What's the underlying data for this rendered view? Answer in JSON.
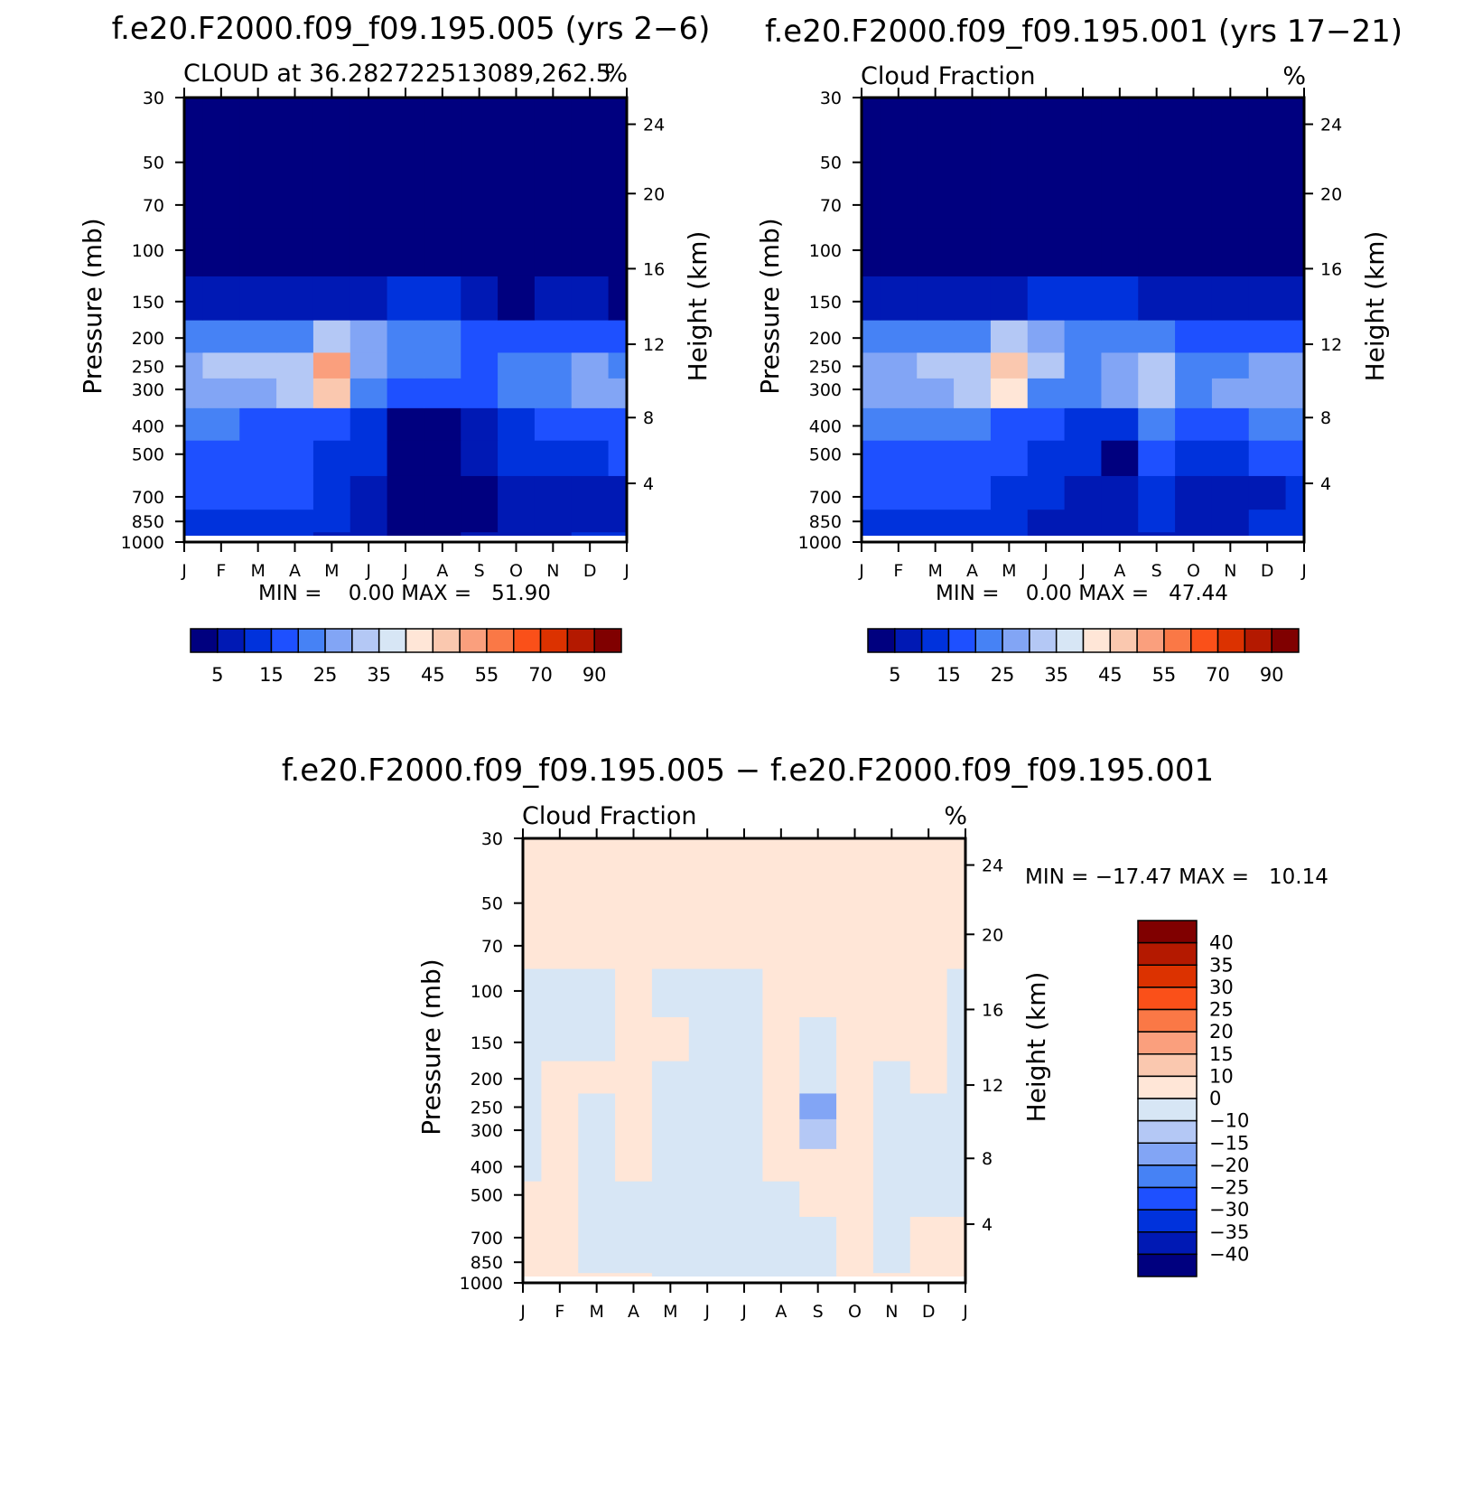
{
  "panels": [
    {
      "main_title": "f.e20.F2000.f09_f09.195.005 (yrs 2−6)",
      "subtitle_left": "CLOUD at 36.282722513089,262.5",
      "subtitle_right": "%",
      "minmax": "MIN =    0.00 MAX =   51.90"
    },
    {
      "main_title": "f.e20.F2000.f09_f09.195.001 (yrs 17−21)",
      "subtitle_left": "Cloud Fraction",
      "subtitle_right": "%",
      "minmax": "MIN =    0.00 MAX =   47.44"
    },
    {
      "main_title": "f.e20.F2000.f09_f09.195.005 − f.e20.F2000.f09_f09.195.001",
      "subtitle_left": "Cloud Fraction",
      "subtitle_right": "%",
      "minmax": "MIN = −17.47 MAX =   10.14"
    }
  ],
  "axes": {
    "left_label": "Pressure (mb)",
    "right_label": "Height (km)",
    "pressure_ticks": [
      "30",
      "50",
      "70",
      "100",
      "150",
      "200",
      "250",
      "300",
      "400",
      "500",
      "700",
      "850",
      "1000"
    ],
    "height_ticks": [
      "24",
      "20",
      "16",
      "12",
      "8",
      "4"
    ],
    "month_ticks": [
      "J",
      "F",
      "M",
      "A",
      "M",
      "J",
      "J",
      "A",
      "S",
      "O",
      "N",
      "D",
      "J"
    ]
  },
  "colorbar_abs": {
    "colors": [
      "#00007f",
      "#0019b4",
      "#0032dc",
      "#1e50ff",
      "#4682f5",
      "#82a5f5",
      "#b4c8f5",
      "#d7e6f5",
      "#ffe6d7",
      "#fac8af",
      "#fa9f7d",
      "#fa7846",
      "#fa5019",
      "#dc3200",
      "#b41900",
      "#800000"
    ],
    "labels": [
      "5",
      "15",
      "25",
      "35",
      "45",
      "55",
      "70",
      "90"
    ]
  },
  "colorbar_diff": {
    "colors": [
      "#00007f",
      "#0019b4",
      "#0032dc",
      "#1e50ff",
      "#4682f5",
      "#82a5f5",
      "#b4c8f5",
      "#d7e6f5",
      "#ffe6d7",
      "#fac8af",
      "#fa9f7d",
      "#fa7846",
      "#fa5019",
      "#dc3200",
      "#b41900",
      "#800000"
    ],
    "labels": [
      "40",
      "35",
      "30",
      "25",
      "20",
      "15",
      "10",
      "0",
      "−10",
      "−15",
      "−20",
      "−25",
      "−30",
      "−35",
      "−40"
    ]
  },
  "chart_data": [
    {
      "type": "heatmap",
      "title": "f.e20.F2000.f09_f09.195.005 (yrs 2−6)",
      "subtitle": "CLOUD at 36.282722513089,262.5",
      "units": "%",
      "xlabel": "",
      "ylabel": "Pressure (mb)",
      "y2label": "Height (km)",
      "x": [
        "J",
        "F",
        "M",
        "A",
        "M",
        "J",
        "J",
        "A",
        "S",
        "O",
        "N",
        "D",
        "J"
      ],
      "y_pressure": [
        1000,
        850,
        700,
        500,
        400,
        300,
        250,
        200,
        150,
        100,
        70,
        50,
        30
      ],
      "min": 0.0,
      "max": 51.9,
      "values": [
        [
          12,
          13,
          12,
          12,
          8,
          6,
          4,
          4,
          5,
          8,
          9,
          10,
          12
        ],
        [
          14,
          14,
          14,
          13,
          10,
          7,
          3,
          3,
          4,
          7,
          6,
          6,
          8
        ],
        [
          16,
          16,
          16,
          15,
          12,
          8,
          3,
          3,
          4,
          7,
          6,
          6,
          8
        ],
        [
          18,
          18,
          18,
          18,
          14,
          10,
          3,
          3,
          5,
          10,
          13,
          14,
          15
        ],
        [
          21,
          20,
          19,
          19,
          16,
          12,
          3,
          4,
          8,
          13,
          16,
          17,
          18
        ],
        [
          27,
          28,
          28,
          30,
          45,
          24,
          18,
          16,
          17,
          22,
          24,
          25,
          25
        ],
        [
          28,
          31,
          30,
          33,
          51,
          29,
          23,
          20,
          18,
          22,
          24,
          25,
          24
        ],
        [
          20,
          20,
          20,
          22,
          30,
          25,
          22,
          20,
          17,
          17,
          17,
          18,
          19
        ],
        [
          5,
          6,
          5,
          6,
          8,
          8,
          10,
          10,
          6,
          4,
          5,
          6,
          4
        ],
        [
          0,
          0,
          0,
          0,
          0,
          0,
          0,
          0,
          0,
          0,
          0,
          0,
          0
        ],
        [
          0,
          0,
          0,
          0,
          0,
          0,
          0,
          0,
          0,
          0,
          0,
          0,
          0
        ],
        [
          0,
          0,
          0,
          0,
          0,
          0,
          0,
          0,
          0,
          0,
          0,
          0,
          0
        ],
        [
          0,
          0,
          0,
          0,
          0,
          0,
          0,
          0,
          0,
          0,
          0,
          0,
          0
        ]
      ]
    },
    {
      "type": "heatmap",
      "title": "f.e20.F2000.f09_f09.195.001 (yrs 17−21)",
      "subtitle": "Cloud Fraction",
      "units": "%",
      "xlabel": "",
      "ylabel": "Pressure (mb)",
      "y2label": "Height (km)",
      "x": [
        "J",
        "F",
        "M",
        "A",
        "M",
        "J",
        "J",
        "A",
        "S",
        "O",
        "N",
        "D",
        "J"
      ],
      "y_pressure": [
        1000,
        850,
        700,
        500,
        400,
        300,
        250,
        200,
        150,
        100,
        70,
        50,
        30
      ],
      "min": 0.0,
      "max": 47.44,
      "values": [
        [
          12,
          12,
          12,
          12,
          10,
          8,
          6,
          7,
          9,
          9,
          9,
          10,
          12
        ],
        [
          14,
          14,
          14,
          14,
          12,
          9,
          7,
          8,
          12,
          9,
          9,
          10,
          12
        ],
        [
          16,
          16,
          16,
          16,
          14,
          10,
          8,
          9,
          13,
          9,
          8,
          9,
          11
        ],
        [
          18,
          18,
          18,
          18,
          16,
          12,
          10,
          3,
          16,
          12,
          14,
          15,
          16
        ],
        [
          21,
          21,
          21,
          21,
          19,
          16,
          14,
          12,
          22,
          18,
          19,
          20,
          21
        ],
        [
          27,
          27,
          28,
          30,
          44,
          24,
          20,
          26,
          32,
          22,
          25,
          26,
          28
        ],
        [
          28,
          29,
          31,
          34,
          47,
          30,
          24,
          28,
          34,
          22,
          24,
          26,
          28
        ],
        [
          20,
          20,
          20,
          22,
          30,
          27,
          24,
          24,
          24,
          18,
          18,
          18,
          19
        ],
        [
          6,
          7,
          6,
          6,
          9,
          10,
          12,
          12,
          6,
          5,
          5,
          6,
          5
        ],
        [
          0,
          0,
          0,
          0,
          0,
          0,
          0,
          0,
          0,
          0,
          0,
          0,
          0
        ],
        [
          0,
          0,
          0,
          0,
          0,
          0,
          0,
          0,
          0,
          0,
          0,
          0,
          0
        ],
        [
          0,
          0,
          0,
          0,
          0,
          0,
          0,
          0,
          0,
          0,
          0,
          0,
          0
        ],
        [
          0,
          0,
          0,
          0,
          0,
          0,
          0,
          0,
          0,
          0,
          0,
          0,
          0
        ]
      ]
    },
    {
      "type": "heatmap",
      "title": "f.e20.F2000.f09_f09.195.005 − f.e20.F2000.f09_f09.195.001",
      "subtitle": "Cloud Fraction",
      "units": "%",
      "xlabel": "",
      "ylabel": "Pressure (mb)",
      "y2label": "Height (km)",
      "x": [
        "J",
        "F",
        "M",
        "A",
        "M",
        "J",
        "J",
        "A",
        "S",
        "O",
        "N",
        "D",
        "J"
      ],
      "y_pressure": [
        1000,
        850,
        700,
        500,
        400,
        300,
        250,
        200,
        150,
        100,
        70,
        50,
        30
      ],
      "min": -17.47,
      "max": 10.14,
      "values": [
        [
          0,
          1,
          0,
          0,
          -1,
          -1,
          -1,
          -1,
          -2,
          0,
          0,
          0,
          0
        ],
        [
          0,
          2,
          -1,
          -1,
          -2,
          -2,
          -2,
          -3,
          -3,
          1,
          -1,
          3,
          2
        ],
        [
          0,
          2,
          -1,
          -2,
          -2,
          -2,
          -3,
          -3,
          -3,
          1,
          -2,
          2,
          1
        ],
        [
          1,
          2,
          -2,
          -2,
          -2,
          -2,
          -3,
          -2,
          2,
          2,
          -2,
          -1,
          -1
        ],
        [
          -1,
          2,
          -1,
          2,
          -2,
          -3,
          -2,
          1,
          2,
          3,
          -2,
          -1,
          -2
        ],
        [
          -1,
          2,
          -1,
          2,
          -2,
          -3,
          -2,
          3,
          -12,
          3,
          -1,
          -1,
          -2
        ],
        [
          -1,
          2,
          -1,
          2,
          -1,
          -2,
          -2,
          3,
          -17,
          3,
          -1,
          -1,
          -2
        ],
        [
          -1,
          1,
          2,
          2,
          -1,
          -2,
          -2,
          3,
          -7,
          3,
          -1,
          1,
          -1
        ],
        [
          -1,
          -1,
          -1,
          2,
          1,
          -2,
          -2,
          2,
          -2,
          2,
          1,
          1,
          -1
        ],
        [
          -1,
          -1,
          -1,
          1,
          -1,
          -1,
          -1,
          1,
          1,
          1,
          1,
          1,
          -1
        ],
        [
          1,
          1,
          1,
          1,
          1,
          1,
          1,
          1,
          1,
          1,
          1,
          1,
          1
        ],
        [
          1,
          1,
          1,
          1,
          1,
          1,
          1,
          1,
          1,
          1,
          1,
          1,
          1
        ],
        [
          1,
          1,
          1,
          1,
          1,
          1,
          1,
          1,
          1,
          1,
          1,
          1,
          1
        ]
      ]
    }
  ]
}
